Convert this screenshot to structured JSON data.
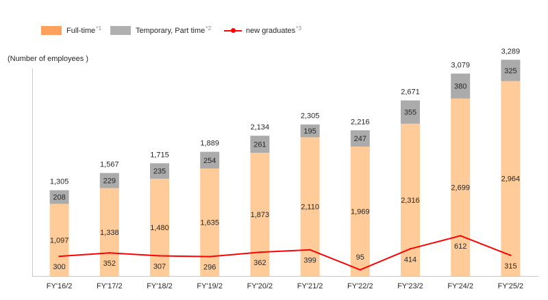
{
  "colors": {
    "full_time_bar": "#FFCC99",
    "full_time_legend": "#FFA05C",
    "temporary_bar": "#ABABAB",
    "temporary_legend": "#B0B0B0",
    "graduates_line": "#FF0000",
    "axis": "#C8C8C8",
    "text": "#262626",
    "note": "#8C8C8C"
  },
  "chart_data": {
    "type": "bar",
    "stacked": true,
    "title": "",
    "xlabel": "",
    "ylabel": "(Number of employees )",
    "categories": [
      "FY'16/2",
      "FY'17/2",
      "FY'18/2",
      "FY'19/2",
      "FY'20/2",
      "FY'21/2",
      "FY'22/2",
      "FY'23/2",
      "FY'24/2",
      "FY'25/2"
    ],
    "series": [
      {
        "name": "Full-time",
        "note": "*1",
        "type": "bar",
        "values": [
          1097,
          1338,
          1480,
          1635,
          1873,
          2110,
          1969,
          2316,
          2699,
          2964
        ]
      },
      {
        "name": "Temporary, Part time",
        "note": "*2",
        "type": "bar",
        "values": [
          208,
          229,
          235,
          254,
          261,
          195,
          247,
          355,
          380,
          325
        ]
      },
      {
        "name": "new graduates",
        "note": "*3",
        "type": "line",
        "values": [
          300,
          352,
          307,
          296,
          362,
          399,
          95,
          414,
          612,
          315
        ]
      }
    ],
    "totals": [
      1305,
      1567,
      1715,
      1889,
      2134,
      2305,
      2216,
      2671,
      3079,
      3289
    ],
    "ylim": [
      0,
      3500
    ],
    "grid": false
  }
}
